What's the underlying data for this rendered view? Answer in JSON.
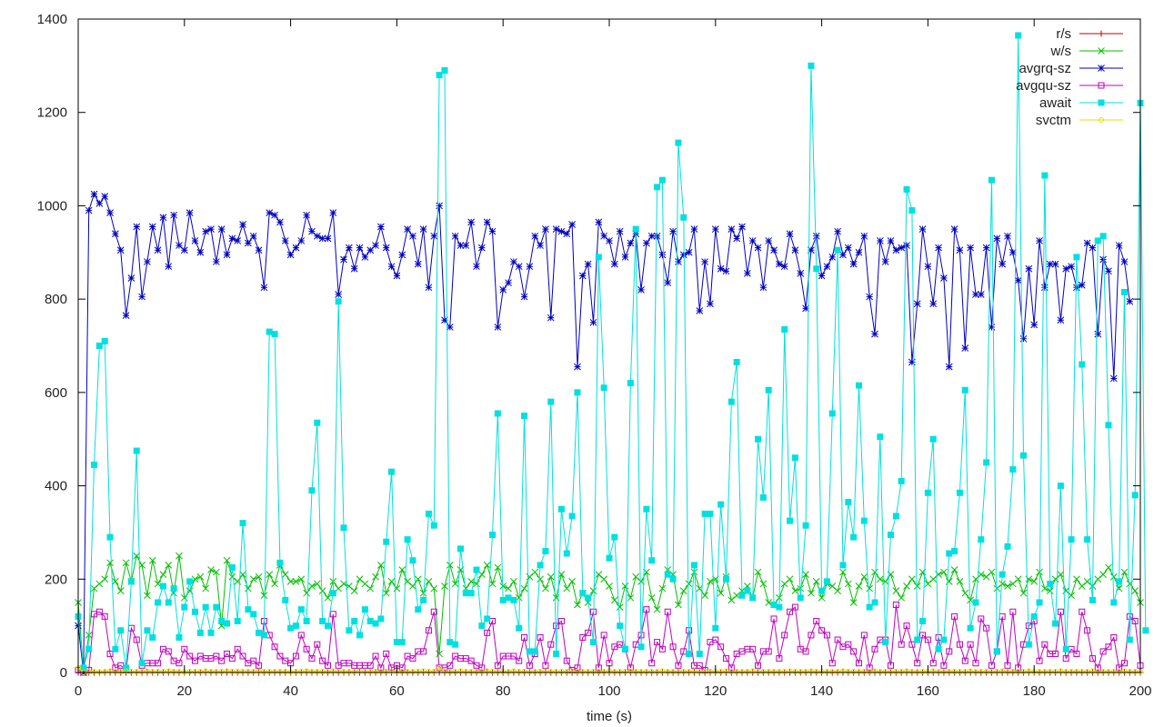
{
  "chart_data": {
    "type": "line",
    "xlabel": "time (s)",
    "ylabel": "",
    "xlim": [
      0,
      200
    ],
    "ylim": [
      0,
      1400
    ],
    "xticks": [
      0,
      20,
      40,
      60,
      80,
      100,
      120,
      140,
      160,
      180,
      200
    ],
    "yticks": [
      0,
      200,
      400,
      600,
      800,
      1000,
      1200,
      1400
    ],
    "legend_position": "top-right",
    "grid": false,
    "series": [
      {
        "name": "r/s",
        "color": "#c00000",
        "marker": "plus",
        "x0": 0,
        "dx": 1,
        "values": [
          0,
          0,
          0,
          0,
          0,
          0,
          0,
          0,
          0,
          0,
          0,
          0,
          0,
          0,
          0,
          0,
          0,
          0,
          0,
          0,
          0,
          0,
          0,
          0,
          0,
          0,
          0,
          0,
          0,
          0,
          0,
          0,
          0,
          0,
          0,
          0,
          0,
          0,
          0,
          0,
          0,
          0,
          0,
          0,
          0,
          0,
          0,
          0,
          0,
          0,
          0,
          0,
          0,
          0,
          0,
          0,
          0,
          0,
          0,
          0,
          0,
          0,
          0,
          0,
          0,
          0,
          0,
          0,
          0,
          0,
          0,
          0,
          0,
          0,
          0,
          0,
          0,
          0,
          0,
          0,
          0,
          0,
          0,
          0,
          0,
          0,
          0,
          0,
          0,
          0,
          0,
          0,
          0,
          0,
          0,
          0,
          0,
          0,
          0,
          0,
          0,
          0,
          0,
          0,
          0,
          0,
          0,
          0,
          0,
          0,
          0,
          0,
          0,
          0,
          0,
          0,
          0,
          0,
          0,
          0,
          0,
          0,
          0,
          0,
          0,
          0,
          0,
          0,
          0,
          0,
          0,
          0,
          0,
          0,
          0,
          0,
          0,
          0,
          0,
          0,
          0,
          0,
          0,
          0,
          0,
          0,
          0,
          0,
          0,
          0,
          0,
          0,
          0,
          0,
          0,
          0,
          0,
          0,
          0,
          0,
          0,
          0,
          0,
          0,
          0,
          0,
          0,
          0,
          0,
          0,
          0,
          0,
          0,
          0,
          0,
          0,
          0,
          0,
          0,
          0,
          0,
          0,
          0,
          0,
          0,
          0,
          0,
          0,
          0,
          0,
          0,
          0,
          0,
          0,
          0,
          0,
          0,
          0,
          0,
          0,
          0
        ]
      },
      {
        "name": "w/s",
        "color": "#00c000",
        "marker": "cross",
        "x0": 0,
        "dx": 1,
        "values": [
          150,
          5,
          80,
          180,
          190,
          200,
          235,
          195,
          175,
          235,
          195,
          250,
          230,
          165,
          240,
          190,
          210,
          230,
          170,
          250,
          160,
          175,
          200,
          205,
          180,
          220,
          215,
          100,
          240,
          205,
          195,
          210,
          180,
          200,
          205,
          165,
          210,
          190,
          230,
          210,
          195,
          195,
          200,
          170,
          185,
          190,
          175,
          160,
          195,
          180,
          190,
          185,
          175,
          200,
          190,
          180,
          205,
          230,
          170,
          195,
          180,
          220,
          195,
          185,
          200,
          170,
          195,
          180,
          40,
          185,
          230,
          190,
          220,
          180,
          195,
          190,
          210,
          230,
          190,
          225,
          185,
          180,
          195,
          160,
          180,
          205,
          215,
          200,
          180,
          205,
          160,
          210,
          180,
          195,
          145,
          170,
          150,
          175,
          210,
          200,
          185,
          155,
          140,
          185,
          160,
          205,
          195,
          215,
          160,
          135,
          180,
          220,
          210,
          145,
          175,
          190,
          215,
          180,
          165,
          195,
          200,
          170,
          205,
          155,
          165,
          175,
          185,
          160,
          215,
          190,
          150,
          145,
          160,
          190,
          200,
          175,
          180,
          210,
          170,
          195,
          160,
          190,
          185,
          175,
          215,
          190,
          150,
          185,
          205,
          180,
          215,
          200,
          195,
          210,
          175,
          160,
          185,
          200,
          185,
          215,
          190,
          200,
          210,
          215,
          195,
          220,
          195,
          170,
          155,
          200,
          210,
          205,
          215,
          180,
          190,
          185,
          190,
          200,
          170,
          200,
          195,
          215,
          180,
          175,
          200,
          210,
          175,
          165,
          200,
          185,
          195,
          185,
          200,
          210,
          225,
          205,
          180,
          215,
          190,
          175,
          150
        ]
      },
      {
        "name": "avgrq-sz",
        "color": "#0000c0",
        "marker": "star",
        "x0": 0,
        "dx": 1,
        "values": [
          100,
          0,
          990,
          1025,
          1005,
          1020,
          985,
          940,
          905,
          765,
          845,
          955,
          805,
          880,
          955,
          905,
          975,
          870,
          980,
          915,
          905,
          985,
          925,
          900,
          945,
          950,
          880,
          950,
          895,
          930,
          925,
          960,
          920,
          935,
          905,
          825,
          985,
          980,
          965,
          925,
          895,
          910,
          925,
          980,
          945,
          935,
          930,
          930,
          985,
          810,
          885,
          910,
          865,
          910,
          890,
          905,
          915,
          955,
          910,
          870,
          850,
          895,
          950,
          935,
          875,
          950,
          825,
          935,
          1000,
          755,
          740,
          935,
          915,
          915,
          965,
          870,
          910,
          965,
          945,
          740,
          820,
          835,
          880,
          870,
          805,
          870,
          935,
          915,
          950,
          760,
          950,
          945,
          940,
          960,
          655,
          850,
          875,
          750,
          965,
          935,
          925,
          875,
          945,
          890,
          920,
          940,
          820,
          920,
          935,
          935,
          895,
          835,
          945,
          880,
          895,
          900,
          950,
          775,
          880,
          790,
          950,
          865,
          860,
          950,
          930,
          955,
          855,
          925,
          910,
          825,
          925,
          905,
          875,
          870,
          940,
          905,
          855,
          780,
          905,
          935,
          850,
          870,
          890,
          945,
          895,
          910,
          875,
          900,
          935,
          805,
          725,
          925,
          880,
          925,
          905,
          910,
          915,
          665,
          790,
          950,
          870,
          790,
          910,
          845,
          655,
          950,
          905,
          695,
          910,
          810,
          810,
          910,
          740,
          930,
          875,
          935,
          900,
          840,
          715,
          865,
          745,
          925,
          825,
          875,
          875,
          755,
          865,
          870,
          825,
          830,
          920,
          910,
          725,
          885,
          860,
          630,
          915,
          880,
          795
        ]
      },
      {
        "name": "avgqu-sz",
        "color": "#c000c0",
        "marker": "square",
        "x0": 0,
        "dx": 1,
        "values": [
          5,
          0,
          5,
          125,
          130,
          120,
          40,
          10,
          15,
          5,
          95,
          70,
          15,
          20,
          20,
          20,
          50,
          45,
          25,
          20,
          50,
          35,
          25,
          35,
          30,
          30,
          35,
          25,
          40,
          30,
          50,
          35,
          20,
          25,
          15,
          110,
          80,
          55,
          35,
          25,
          20,
          35,
          80,
          50,
          30,
          60,
          25,
          15,
          125,
          15,
          20,
          20,
          15,
          15,
          15,
          15,
          35,
          10,
          40,
          10,
          15,
          10,
          35,
          30,
          45,
          45,
          90,
          130,
          10,
          10,
          15,
          35,
          30,
          30,
          25,
          15,
          10,
          85,
          110,
          15,
          35,
          35,
          35,
          25,
          75,
          15,
          40,
          75,
          15,
          60,
          100,
          110,
          25,
          5,
          10,
          75,
          85,
          130,
          10,
          80,
          20,
          55,
          60,
          50,
          10,
          60,
          80,
          135,
          20,
          65,
          50,
          130,
          55,
          15,
          45,
          90,
          15,
          15,
          5,
          65,
          70,
          55,
          30,
          10,
          40,
          45,
          50,
          50,
          15,
          45,
          45,
          115,
          30,
          80,
          130,
          140,
          50,
          45,
          80,
          110,
          90,
          80,
          20,
          70,
          55,
          60,
          45,
          20,
          80,
          10,
          50,
          70,
          70,
          15,
          145,
          60,
          100,
          60,
          20,
          80,
          70,
          20,
          75,
          15,
          45,
          120,
          60,
          25,
          60,
          20,
          115,
          95,
          15,
          45,
          120,
          15,
          130,
          10,
          60,
          100,
          110,
          25,
          60,
          40,
          40,
          130,
          30,
          50,
          40,
          130,
          90,
          30,
          10,
          45,
          55,
          75,
          10,
          20,
          120,
          110,
          15
        ]
      },
      {
        "name": "await",
        "color": "#00e0e0",
        "marker": "filled-square",
        "x0": 0,
        "dx": 1,
        "values": [
          120,
          10,
          50,
          445,
          700,
          710,
          290,
          50,
          90,
          10,
          195,
          475,
          20,
          90,
          75,
          150,
          185,
          150,
          180,
          75,
          140,
          195,
          130,
          85,
          140,
          85,
          140,
          110,
          105,
          225,
          110,
          320,
          135,
          125,
          85,
          80,
          730,
          725,
          235,
          155,
          95,
          100,
          135,
          110,
          390,
          535,
          110,
          100,
          170,
          795,
          310,
          90,
          110,
          80,
          135,
          110,
          105,
          115,
          280,
          430,
          65,
          65,
          285,
          240,
          135,
          155,
          340,
          315,
          1280,
          1290,
          65,
          60,
          265,
          170,
          170,
          220,
          100,
          115,
          295,
          555,
          155,
          160,
          155,
          95,
          550,
          45,
          45,
          230,
          260,
          580,
          40,
          350,
          255,
          335,
          600,
          170,
          160,
          65,
          890,
          610,
          245,
          290,
          100,
          50,
          620,
          950,
          55,
          350,
          240,
          1040,
          1055,
          210,
          200,
          1135,
          975,
          40,
          230,
          40,
          340,
          340,
          95,
          360,
          200,
          580,
          665,
          165,
          175,
          160,
          500,
          375,
          605,
          145,
          140,
          735,
          325,
          460,
          160,
          315,
          1300,
          865,
          175,
          195,
          555,
          905,
          230,
          365,
          290,
          615,
          325,
          140,
          150,
          505,
          65,
          295,
          335,
          410,
          1035,
          990,
          70,
          110,
          385,
          500,
          50,
          70,
          255,
          260,
          385,
          605,
          95,
          150,
          285,
          450,
          1055,
          45,
          210,
          270,
          435,
          1365,
          465,
          60,
          120,
          150,
          1065,
          190,
          105,
          400,
          50,
          285,
          890,
          660,
          285,
          155,
          925,
          935,
          530,
          150,
          195,
          815,
          70,
          380,
          1220,
          90
        ]
      },
      {
        "name": "svctm",
        "color": "#e0e000",
        "marker": "circle",
        "x0": 0,
        "dx": 1,
        "values": [
          10,
          0,
          2,
          2,
          1,
          2,
          3,
          2,
          2,
          3,
          2,
          2,
          2,
          3,
          2,
          2,
          2,
          3,
          2,
          2,
          1,
          2,
          2,
          2,
          3,
          2,
          2,
          2,
          3,
          2,
          2,
          2,
          2,
          2,
          3,
          2,
          2,
          2,
          2,
          2,
          1,
          2,
          2,
          3,
          2,
          2,
          2,
          2,
          3,
          2,
          2,
          2,
          2,
          3,
          2,
          2,
          2,
          2,
          2,
          3,
          2,
          2,
          2,
          2,
          2,
          3,
          2,
          2,
          10,
          2,
          2,
          2,
          3,
          2,
          2,
          2,
          2,
          3,
          2,
          2,
          2,
          2,
          3,
          2,
          2,
          2,
          2,
          2,
          3,
          2,
          2,
          2,
          2,
          3,
          2,
          2,
          2,
          2,
          2,
          2,
          3,
          2,
          2,
          2,
          3,
          2,
          2,
          2,
          2,
          2,
          3,
          2,
          2,
          2,
          2,
          2,
          3,
          2,
          2,
          2,
          2,
          2,
          3,
          2,
          2,
          2,
          2,
          3,
          2,
          2,
          2,
          2,
          2,
          2,
          3,
          2,
          2,
          2,
          3,
          2,
          2,
          2,
          2,
          2,
          3,
          2,
          2,
          2,
          2,
          2,
          3,
          2,
          2,
          2,
          2,
          2,
          3,
          2,
          2,
          2,
          2,
          3,
          2,
          2,
          2,
          2,
          2,
          2,
          3,
          2,
          2,
          2,
          2,
          2,
          3,
          2,
          2,
          2,
          2,
          3,
          2,
          2,
          2,
          2,
          2,
          3,
          2,
          2,
          2,
          2,
          2,
          3,
          2,
          2,
          2,
          2,
          2,
          3,
          2,
          2,
          2
        ]
      }
    ]
  }
}
